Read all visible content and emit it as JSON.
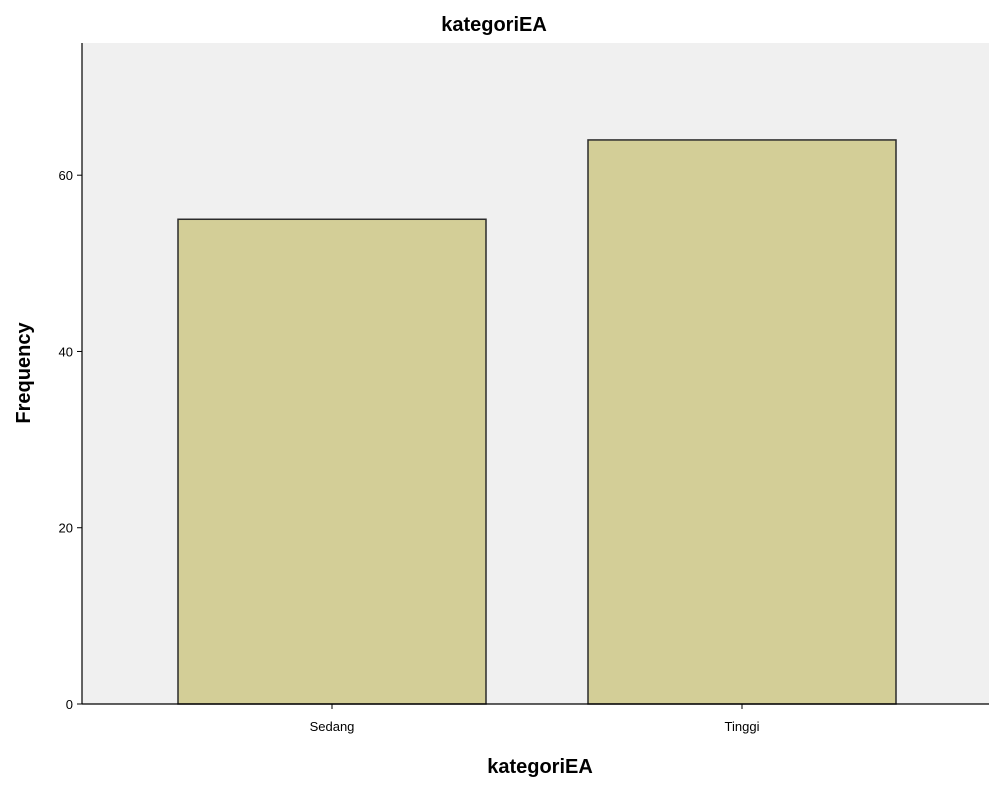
{
  "chart_data": {
    "type": "bar",
    "title": "kategoriEA",
    "xlabel": "kategoriEA",
    "ylabel": "Frequency",
    "categories": [
      "Sedang",
      "Tinggi"
    ],
    "values": [
      55,
      64
    ],
    "ylim": [
      0,
      75
    ],
    "yticks": [
      0,
      20,
      40,
      60
    ],
    "grid": false,
    "colors": {
      "plot_background": "#f0f0f0",
      "bar_fill": "#d3ce97",
      "bar_stroke": "#2b2b2b",
      "axis": "#000000"
    }
  }
}
